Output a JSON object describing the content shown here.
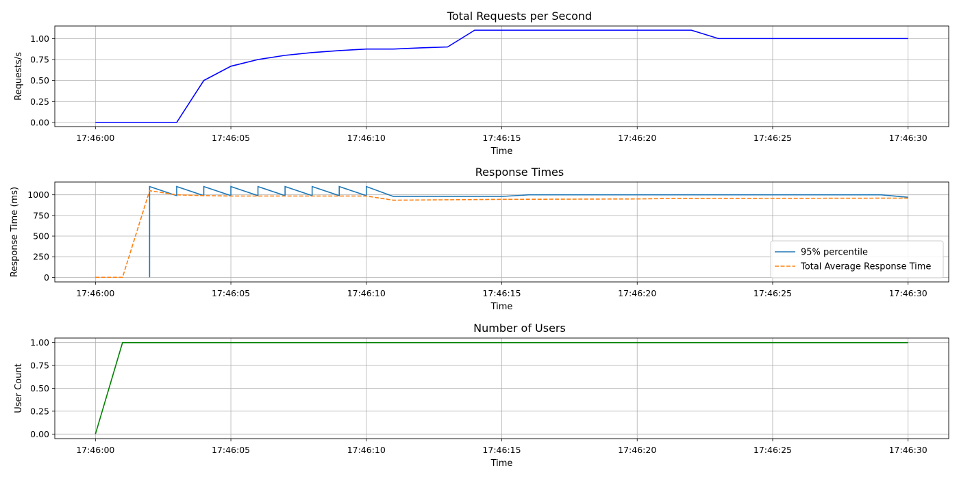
{
  "chart_data": [
    {
      "type": "line",
      "title": "Total Requests per Second",
      "xlabel": "Time",
      "ylabel": "Requests/s",
      "x_ticks": [
        "17:46:00",
        "17:46:05",
        "17:46:10",
        "17:46:15",
        "17:46:20",
        "17:46:25",
        "17:46:30"
      ],
      "y_ticks": [
        "0.00",
        "0.25",
        "0.50",
        "0.75",
        "1.00"
      ],
      "xlim": [
        "17:45:58.5",
        "17:46:31.5"
      ],
      "ylim": [
        -0.05,
        1.15
      ],
      "grid": true,
      "series": [
        {
          "color": "#0000ff",
          "dash": false,
          "x": [
            "17:46:00",
            "17:46:01",
            "17:46:02",
            "17:46:03",
            "17:46:04",
            "17:46:05",
            "17:46:06",
            "17:46:07",
            "17:46:08",
            "17:46:09",
            "17:46:10",
            "17:46:11",
            "17:46:12",
            "17:46:13",
            "17:46:14",
            "17:46:15",
            "17:46:16",
            "17:46:17",
            "17:46:18",
            "17:46:19",
            "17:46:20",
            "17:46:21",
            "17:46:22",
            "17:46:23",
            "17:46:24",
            "17:46:25",
            "17:46:26",
            "17:46:27",
            "17:46:28",
            "17:46:29",
            "17:46:30"
          ],
          "y": [
            0,
            0,
            0,
            0,
            0.5,
            0.67,
            0.75,
            0.8,
            0.833,
            0.857,
            0.875,
            0.875,
            0.889,
            0.9,
            1.1,
            1.1,
            1.1,
            1.1,
            1.1,
            1.1,
            1.1,
            1.1,
            1.1,
            1.0,
            1.0,
            1.0,
            1.0,
            1.0,
            1.0,
            1.0,
            1.0
          ]
        }
      ]
    },
    {
      "type": "line",
      "title": "Response Times",
      "xlabel": "Time",
      "ylabel": "Response Time (ms)",
      "x_ticks": [
        "17:46:00",
        "17:46:05",
        "17:46:10",
        "17:46:15",
        "17:46:20",
        "17:46:25",
        "17:46:30"
      ],
      "y_ticks": [
        "0",
        "250",
        "500",
        "750",
        "1000"
      ],
      "xlim": [
        "17:45:58.5",
        "17:46:31.5"
      ],
      "ylim": [
        -55,
        1155
      ],
      "grid": true,
      "legend": "lower right",
      "series": [
        {
          "name": "95% percentile",
          "color": "#1f77b4",
          "dash": false,
          "x": [
            "17:46:02",
            "17:46:02",
            "17:46:03",
            "17:46:03",
            "17:46:04",
            "17:46:04",
            "17:46:05",
            "17:46:05",
            "17:46:06",
            "17:46:06",
            "17:46:07",
            "17:46:07",
            "17:46:08",
            "17:46:08",
            "17:46:09",
            "17:46:09",
            "17:46:10",
            "17:46:10",
            "17:46:11",
            "17:46:15",
            "17:46:16",
            "17:46:29",
            "17:46:30"
          ],
          "y": [
            0,
            1100,
            990,
            1100,
            990,
            1100,
            990,
            1100,
            990,
            1100,
            990,
            1100,
            990,
            1100,
            990,
            1100,
            990,
            1100,
            980,
            980,
            1000,
            1000,
            970
          ]
        },
        {
          "name": "Total Average Response Time",
          "color": "#ff7f0e",
          "dash": true,
          "x": [
            "17:46:00",
            "17:46:01",
            "17:46:02",
            "17:46:03",
            "17:46:04",
            "17:46:05",
            "17:46:10",
            "17:46:11",
            "17:46:15",
            "17:46:20",
            "17:46:21",
            "17:46:30"
          ],
          "y": [
            0,
            0,
            1050,
            1000,
            990,
            985,
            985,
            935,
            945,
            950,
            955,
            960
          ]
        }
      ]
    },
    {
      "type": "line",
      "title": "Number of Users",
      "xlabel": "Time",
      "ylabel": "User Count",
      "x_ticks": [
        "17:46:00",
        "17:46:05",
        "17:46:10",
        "17:46:15",
        "17:46:20",
        "17:46:25",
        "17:46:30"
      ],
      "y_ticks": [
        "0.00",
        "0.25",
        "0.50",
        "0.75",
        "1.00"
      ],
      "xlim": [
        "17:45:58.5",
        "17:46:31.5"
      ],
      "ylim": [
        -0.05,
        1.05
      ],
      "grid": true,
      "series": [
        {
          "color": "#008000",
          "dash": false,
          "x": [
            "17:46:00",
            "17:46:01",
            "17:46:30"
          ],
          "y": [
            0,
            1,
            1
          ]
        }
      ]
    }
  ]
}
